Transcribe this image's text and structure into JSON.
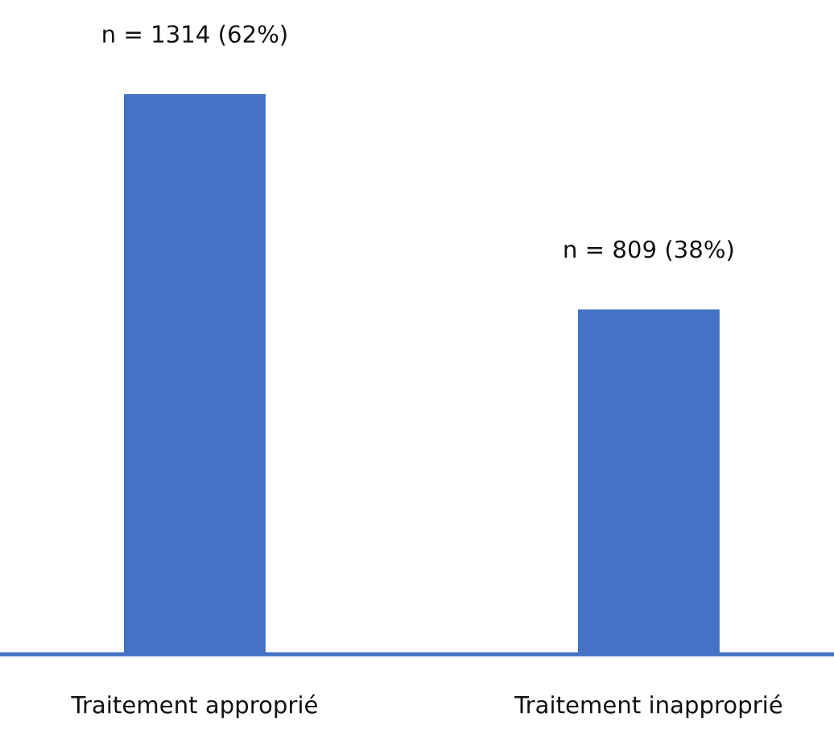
{
  "chart_data": {
    "type": "bar",
    "categories": [
      "Traitement approprié",
      "Traitement inapproprié"
    ],
    "values": [
      1314,
      809
    ],
    "value_labels": [
      "n = 1314 (62%)",
      "n = 809 (38%)"
    ],
    "color": "#4472c4",
    "grid": false,
    "legend": false
  }
}
